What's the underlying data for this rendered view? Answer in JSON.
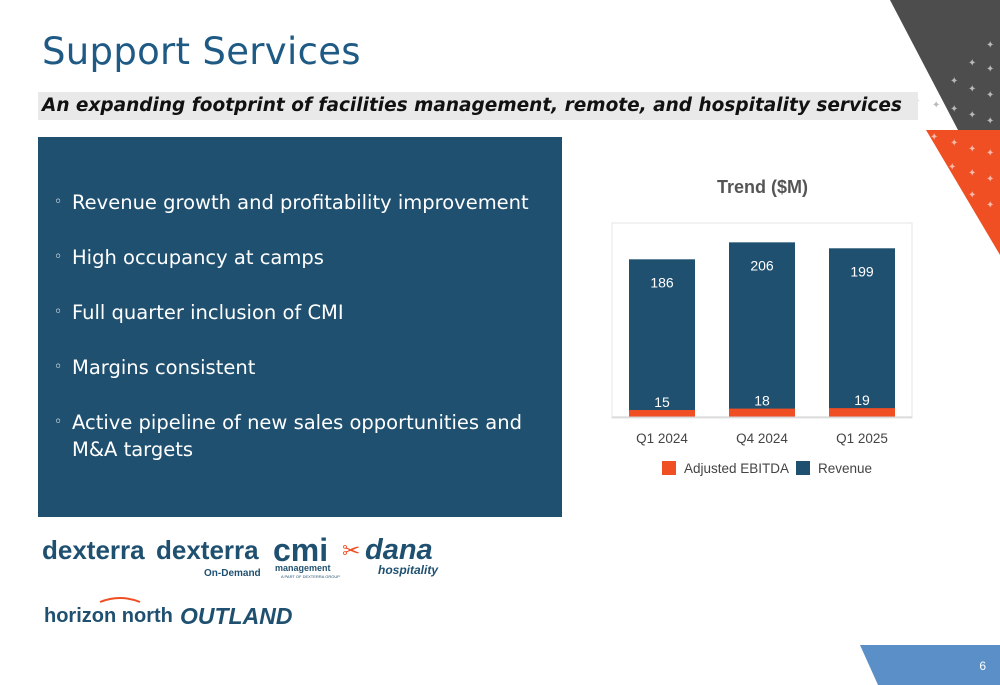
{
  "slide": {
    "title": "Support Services",
    "subtitle": "An expanding footprint of facilities management, remote, and hospitality services",
    "page_number": "6"
  },
  "bullets": [
    "Revenue growth and profitability improvement",
    "High occupancy at camps",
    "Full quarter inclusion of CMI",
    "Margins consistent",
    "Active pipeline of new sales opportunities and M&A targets"
  ],
  "bullet_marker": "◦",
  "chart_data": {
    "type": "bar",
    "stacked": true,
    "title": "Trend ($M)",
    "categories": [
      "Q1 2024",
      "Q4 2024",
      "Q1 2025"
    ],
    "series": [
      {
        "name": "Adjusted EBITDA",
        "values": [
          15,
          18,
          19
        ],
        "color": "#f04e23"
      },
      {
        "name": "Revenue",
        "values": [
          186,
          206,
          199
        ],
        "color": "#1f5070"
      }
    ],
    "ylim": [
      0,
      230
    ],
    "legend_position": "bottom",
    "grid": false
  },
  "logos": {
    "dexterra": "dexterra",
    "dexterra_ondemand": "dexterra",
    "ondemand_tag": "On-Demand",
    "cmi": "cmi",
    "cmi_sub": "management",
    "cmi_tag": "A PART OF DEXTERRA GROUP",
    "dana": "dana",
    "dana_sub": "hospitality",
    "horizon": "horizon north",
    "outland": "OUTLAND"
  },
  "colors": {
    "accent_orange": "#f04e23",
    "navy": "#1f5070",
    "title_blue": "#1f5a85",
    "corner_gray": "#4d4d4d",
    "tab_blue": "#5b8fc7"
  }
}
